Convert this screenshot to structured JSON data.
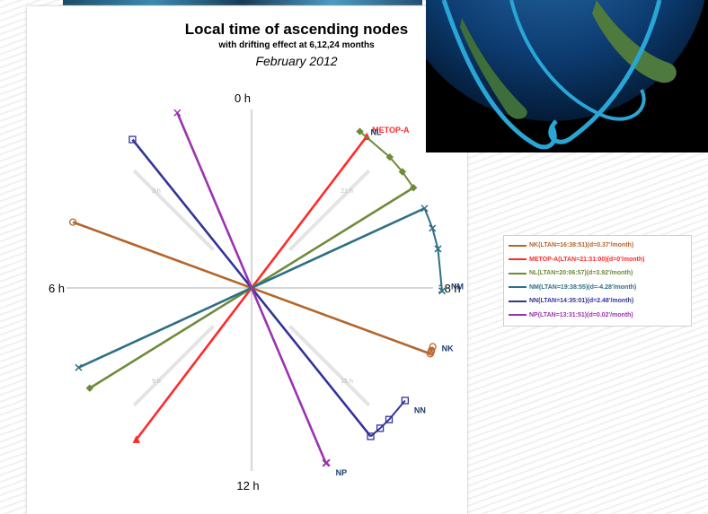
{
  "chart_data": {
    "type": "line",
    "title": "Local time of ascending nodes",
    "subtitle": "with drifting effect at 6,12,24 months",
    "date": "February 2012",
    "hour_labels": {
      "top": "0 h",
      "left": "6 h",
      "right": "18 h",
      "bottom": "12 h"
    },
    "inner_tick_labels": [
      "21 h",
      "3 h",
      "9 h",
      "15 h"
    ],
    "grid": true,
    "legend_position": "right",
    "series": [
      {
        "name": "NK(LTAN=16:38:51)(d=0.37'/month)",
        "tag": "NK",
        "color": "#b5652b",
        "ltan_hours": 16.65,
        "drift_hours": [
          16.65,
          16.69,
          16.72,
          16.8
        ],
        "marker": "circle"
      },
      {
        "name": "METOP-A(LTAN=21:31:00)(d=0'/month)",
        "tag": "METOP-A",
        "color": "#ff2a2a",
        "ltan_hours": 21.52,
        "drift_hours": [
          21.52,
          21.52,
          21.52,
          21.52
        ],
        "marker": "triangle"
      },
      {
        "name": "NL(LTAN=20:06:57)(d=3.92'/month)",
        "tag": "NL",
        "color": "#6f8a3a",
        "ltan_hours": 20.12,
        "drift_hours": [
          20.12,
          20.51,
          20.9,
          21.69
        ],
        "marker": "diamond"
      },
      {
        "name": "NM(LTAN=19:38:55)(d=-4.28'/month)",
        "tag": "NM",
        "color": "#2d6f85",
        "ltan_hours": 19.65,
        "drift_hours": [
          19.65,
          19.22,
          18.79,
          17.94
        ],
        "marker": "x"
      },
      {
        "name": "NN(LTAN=14:35:01)(d=2.48'/month)",
        "tag": "NN",
        "color": "#33339a",
        "ltan_hours": 14.58,
        "drift_hours": [
          14.58,
          14.83,
          15.08,
          15.58
        ],
        "marker": "square"
      },
      {
        "name": "NP(LTAN=13:31:51)(d=0.02'/month)",
        "tag": "NP",
        "color": "#9a33b0",
        "ltan_hours": 13.53,
        "drift_hours": [
          13.53,
          13.53,
          13.54,
          13.55
        ],
        "marker": "x"
      }
    ]
  }
}
